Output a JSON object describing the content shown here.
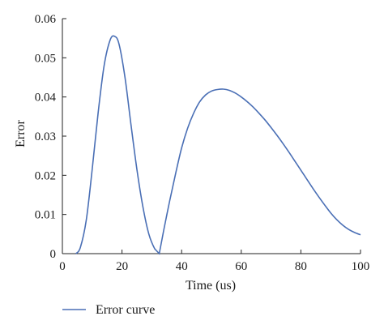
{
  "chart_data": {
    "type": "line",
    "xlabel": "Time (us)",
    "ylabel": "Error",
    "xlim": [
      0,
      100
    ],
    "ylim": [
      0,
      0.06
    ],
    "xticks": [
      0,
      20,
      40,
      60,
      80,
      100
    ],
    "yticks": [
      0,
      0.01,
      0.02,
      0.03,
      0.04,
      0.05,
      0.06
    ],
    "xtick_labels": [
      "0",
      "20",
      "40",
      "60",
      "80",
      "100"
    ],
    "ytick_labels": [
      "0",
      "0.01",
      "0.02",
      "0.03",
      "0.04",
      "0.05",
      "0.06"
    ],
    "grid": false,
    "legend_position": "bottom-left",
    "series": [
      {
        "name": "Error curve",
        "color": "#4a6fb5",
        "x": [
          4.5,
          6,
          8,
          10,
          12,
          14,
          16,
          17.5,
          19,
          21,
          23,
          25,
          27,
          29,
          31,
          32.5,
          34,
          36,
          38,
          40,
          42,
          44,
          46,
          48,
          50,
          52,
          54,
          56,
          58,
          60,
          62,
          64,
          66,
          68,
          70,
          72,
          74,
          76,
          78,
          80,
          82,
          84,
          86,
          88,
          90,
          92,
          94,
          96,
          98,
          100
        ],
        "y": [
          0,
          0.0015,
          0.0085,
          0.0215,
          0.036,
          0.048,
          0.0545,
          0.0555,
          0.0535,
          0.045,
          0.033,
          0.0215,
          0.012,
          0.005,
          0.0012,
          0,
          0.006,
          0.0135,
          0.0205,
          0.027,
          0.032,
          0.0358,
          0.0387,
          0.0405,
          0.0415,
          0.0419,
          0.042,
          0.0417,
          0.041,
          0.04,
          0.0388,
          0.0374,
          0.0358,
          0.0341,
          0.0322,
          0.0302,
          0.0281,
          0.0259,
          0.0236,
          0.0213,
          0.019,
          0.0167,
          0.0145,
          0.0124,
          0.0104,
          0.0087,
          0.0073,
          0.0062,
          0.0054,
          0.0048
        ]
      }
    ]
  }
}
